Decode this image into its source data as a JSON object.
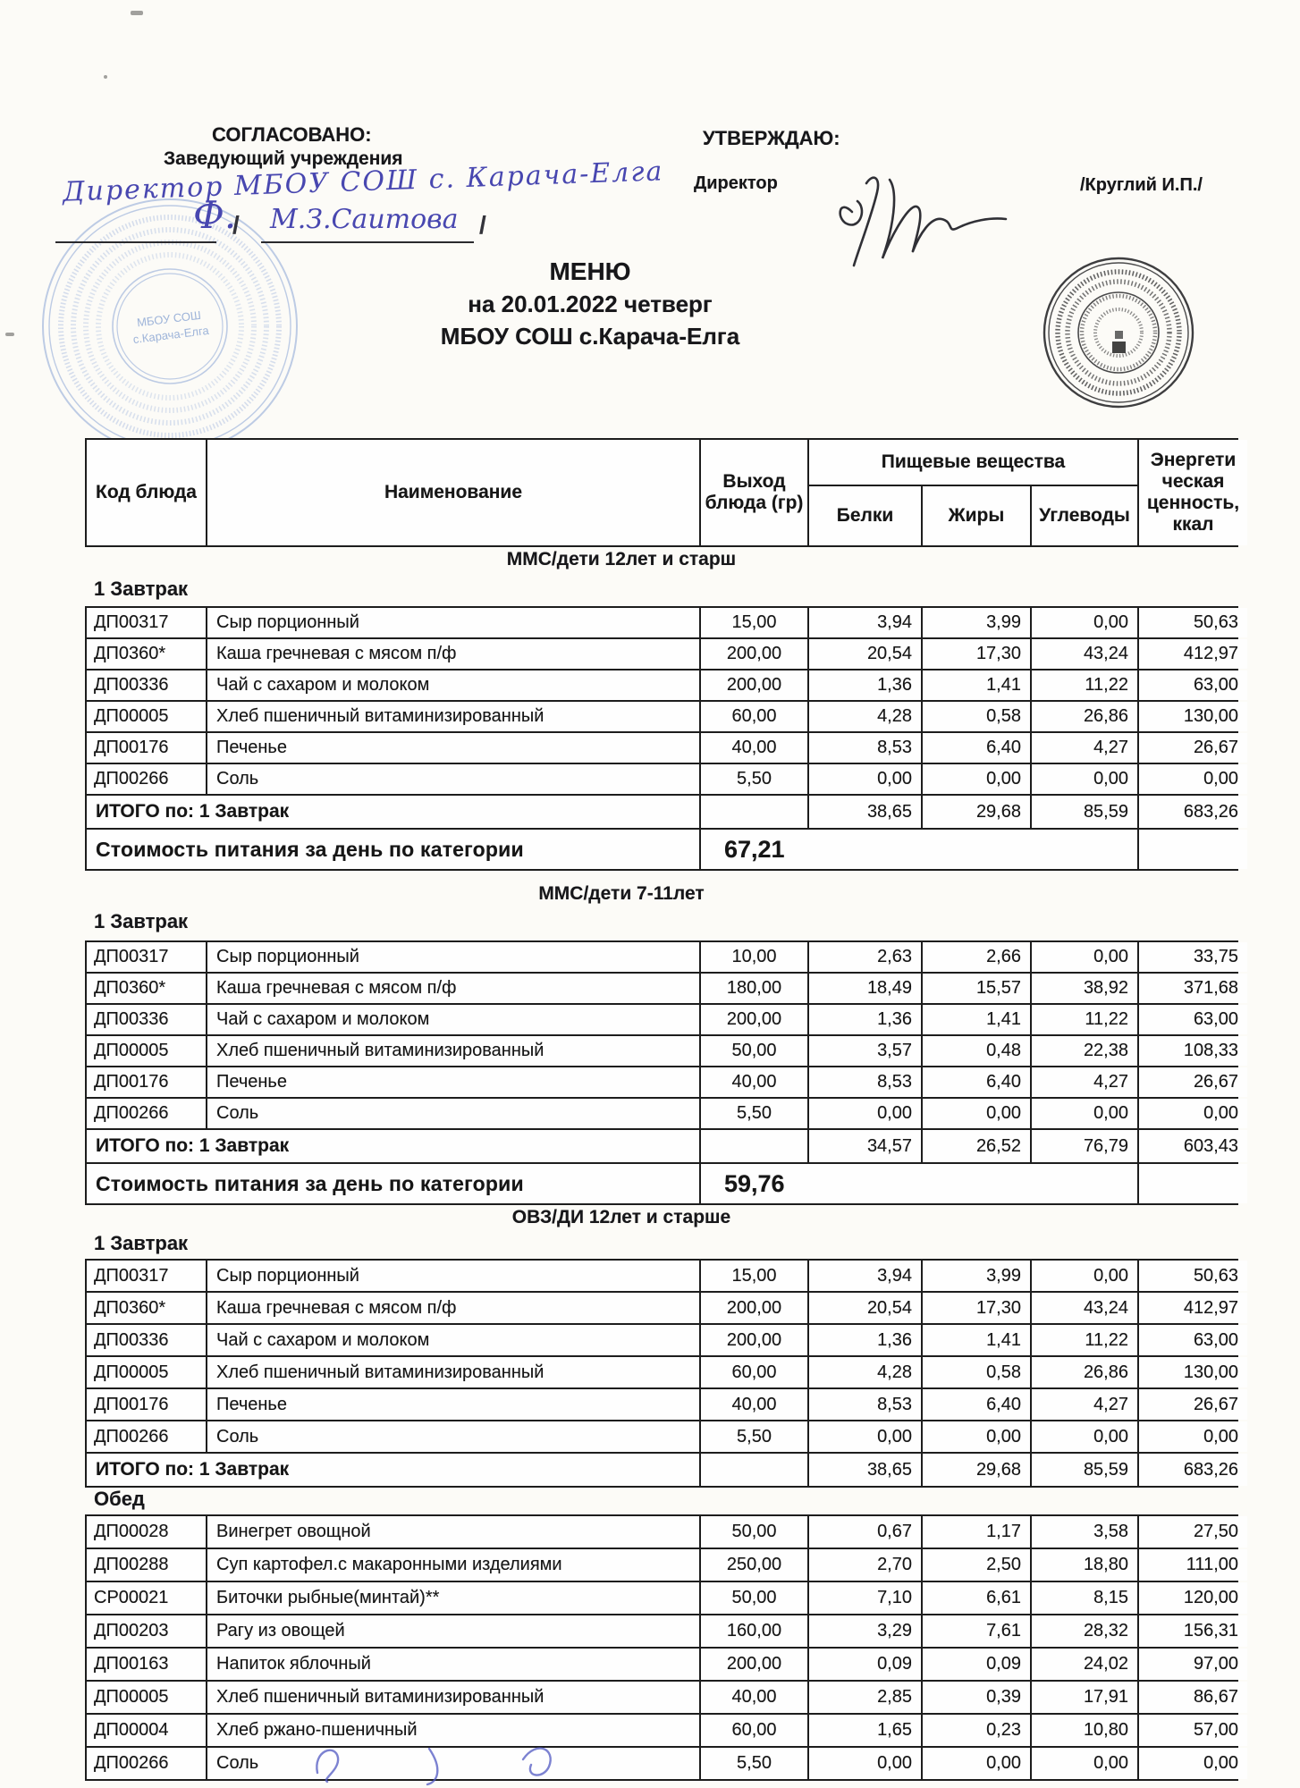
{
  "approved": {
    "label": "СОГЛАСОВАНО:",
    "subtitle": "Заведующий  учреждения",
    "handwriting": "Директор МБОУ СОШ с. Карача-Елга",
    "initial": "Ф.",
    "name": "М.З.Саитова",
    "slash": "/"
  },
  "approver": {
    "label": "УТВЕРЖДАЮ:",
    "subtitle": "Директор",
    "name": "/Круглий И.П./"
  },
  "title": {
    "line1": "МЕНЮ",
    "line2": "на 20.01.2022  четверг",
    "line3": "МБОУ СОШ с.Карача-Елга"
  },
  "stamp": {
    "line1": "МБОУ СОШ",
    "line2": "с.Карача-Елга"
  },
  "table_header": {
    "col_code": "Код блюда",
    "col_name": "Наименование",
    "col_out": "Выход блюда (гр)",
    "group": "Пищевые вещества",
    "col_protein": "Белки",
    "col_fat": "Жиры",
    "col_carb": "Углеводы",
    "col_energy": "Энергети ческая ценность, ккал"
  },
  "sections": [
    {
      "category": "ММС/дети 12лет и старш",
      "meal": "1 Завтрак",
      "rows": [
        [
          "ДП00317",
          "Сыр порционный",
          "15,00",
          "3,94",
          "3,99",
          "0,00",
          "50,63"
        ],
        [
          "ДП0360*",
          "Каша гречневая с мясом п/ф",
          "200,00",
          "20,54",
          "17,30",
          "43,24",
          "412,97"
        ],
        [
          "ДП00336",
          "Чай с сахаром и молоком",
          "200,00",
          "1,36",
          "1,41",
          "11,22",
          "63,00"
        ],
        [
          "ДП00005",
          "Хлеб пшеничный витаминизированный",
          "60,00",
          "4,28",
          "0,58",
          "26,86",
          "130,00"
        ],
        [
          "ДП00176",
          "Печенье",
          "40,00",
          "8,53",
          "6,40",
          "4,27",
          "26,67"
        ],
        [
          "ДП00266",
          "Соль",
          "5,50",
          "0,00",
          "0,00",
          "0,00",
          "0,00"
        ]
      ],
      "total_label": "ИТОГО по: 1 Завтрак",
      "totals": [
        "38,65",
        "29,68",
        "85,59",
        "683,26"
      ],
      "cost_label": "Стоимость питания за день по категории",
      "cost_value": "67,21"
    },
    {
      "category": "ММС/дети 7-11лет",
      "meal": "1 Завтрак",
      "rows": [
        [
          "ДП00317",
          "Сыр порционный",
          "10,00",
          "2,63",
          "2,66",
          "0,00",
          "33,75"
        ],
        [
          "ДП0360*",
          "Каша гречневая с мясом п/ф",
          "180,00",
          "18,49",
          "15,57",
          "38,92",
          "371,68"
        ],
        [
          "ДП00336",
          "Чай с сахаром и молоком",
          "200,00",
          "1,36",
          "1,41",
          "11,22",
          "63,00"
        ],
        [
          "ДП00005",
          "Хлеб пшеничный витаминизированный",
          "50,00",
          "3,57",
          "0,48",
          "22,38",
          "108,33"
        ],
        [
          "ДП00176",
          "Печенье",
          "40,00",
          "8,53",
          "6,40",
          "4,27",
          "26,67"
        ],
        [
          "ДП00266",
          "Соль",
          "5,50",
          "0,00",
          "0,00",
          "0,00",
          "0,00"
        ]
      ],
      "total_label": "ИТОГО по: 1 Завтрак",
      "totals": [
        "34,57",
        "26,52",
        "76,79",
        "603,43"
      ],
      "cost_label": "Стоимость питания за день по категории",
      "cost_value": "59,76"
    },
    {
      "category": "ОВЗ/ДИ 12лет и старше",
      "meal": "1 Завтрак",
      "rows": [
        [
          "ДП00317",
          "Сыр порционный",
          "15,00",
          "3,94",
          "3,99",
          "0,00",
          "50,63"
        ],
        [
          "ДП0360*",
          "Каша гречневая с мясом п/ф",
          "200,00",
          "20,54",
          "17,30",
          "43,24",
          "412,97"
        ],
        [
          "ДП00336",
          "Чай с сахаром и молоком",
          "200,00",
          "1,36",
          "1,41",
          "11,22",
          "63,00"
        ],
        [
          "ДП00005",
          "Хлеб пшеничный витаминизированный",
          "60,00",
          "4,28",
          "0,58",
          "26,86",
          "130,00"
        ],
        [
          "ДП00176",
          "Печенье",
          "40,00",
          "8,53",
          "6,40",
          "4,27",
          "26,67"
        ],
        [
          "ДП00266",
          "Соль",
          "5,50",
          "0,00",
          "0,00",
          "0,00",
          "0,00"
        ]
      ],
      "total_label": "ИТОГО по: 1 Завтрак",
      "totals": [
        "38,65",
        "29,68",
        "85,59",
        "683,26"
      ]
    },
    {
      "meal": "Обед",
      "rows": [
        [
          "ДП00028",
          "Винегрет овощной",
          "50,00",
          "0,67",
          "1,17",
          "3,58",
          "27,50"
        ],
        [
          "ДП00288",
          "Суп картофел.с макаронными изделиями",
          "250,00",
          "2,70",
          "2,50",
          "18,80",
          "111,00"
        ],
        [
          "СР00021",
          "Биточки рыбные(минтай)**",
          "50,00",
          "7,10",
          "6,61",
          "8,15",
          "120,00"
        ],
        [
          "ДП00203",
          "Рагу из овощей",
          "160,00",
          "3,29",
          "7,61",
          "28,32",
          "156,31"
        ],
        [
          "ДП00163",
          "Напиток яблочный",
          "200,00",
          "0,09",
          "0,09",
          "24,02",
          "97,00"
        ],
        [
          "ДП00005",
          "Хлеб пшеничный витаминизированный",
          "40,00",
          "2,85",
          "0,39",
          "17,91",
          "86,67"
        ],
        [
          "ДП00004",
          "Хлеб ржано-пшеничный",
          "60,00",
          "1,65",
          "0,23",
          "10,80",
          "57,00"
        ],
        [
          "ДП00266",
          "Соль",
          "5,50",
          "0,00",
          "0,00",
          "0,00",
          "0,00"
        ]
      ]
    }
  ]
}
